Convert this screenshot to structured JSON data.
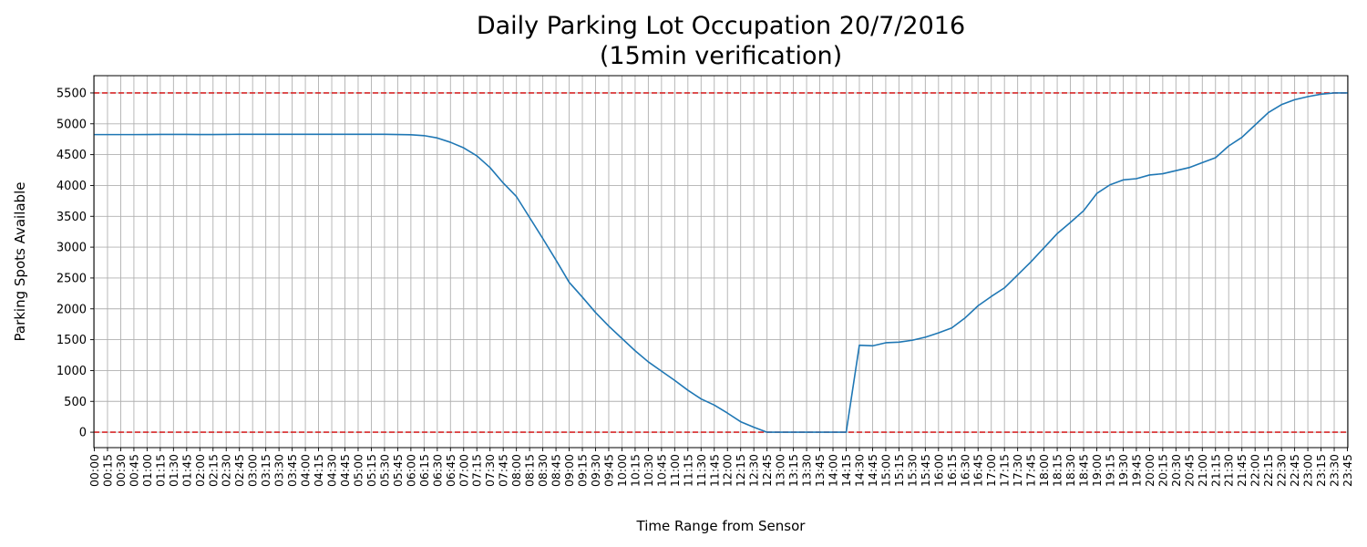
{
  "chart_data": {
    "type": "line",
    "title": "Daily Parking Lot Occupation 20/7/2016",
    "subtitle": "(15min verification)",
    "xlabel": "Time Range from Sensor",
    "ylabel": "Parking Spots Available",
    "ylim": [
      -250,
      5780
    ],
    "yticks": [
      0,
      500,
      1000,
      1500,
      2000,
      2500,
      3000,
      3500,
      4000,
      4500,
      5000,
      5500
    ],
    "grid": true,
    "line_color": "#1f77b4",
    "reference_lines": [
      {
        "value": 5500,
        "color": "#d62728",
        "style": "dashed"
      },
      {
        "value": 0,
        "color": "#d62728",
        "style": "dashed"
      }
    ],
    "x": [
      "00:00",
      "00:15",
      "00:30",
      "00:45",
      "01:00",
      "01:15",
      "01:30",
      "01:45",
      "02:00",
      "02:15",
      "02:30",
      "02:45",
      "03:00",
      "03:15",
      "03:30",
      "03:45",
      "04:00",
      "04:15",
      "04:30",
      "04:45",
      "05:00",
      "05:15",
      "05:30",
      "05:45",
      "06:00",
      "06:15",
      "06:30",
      "06:45",
      "07:00",
      "07:15",
      "07:30",
      "07:45",
      "08:00",
      "08:15",
      "08:30",
      "08:45",
      "09:00",
      "09:15",
      "09:30",
      "09:45",
      "10:00",
      "10:15",
      "10:30",
      "10:45",
      "11:00",
      "11:15",
      "11:30",
      "11:45",
      "12:00",
      "12:15",
      "12:30",
      "12:45",
      "13:00",
      "13:15",
      "13:30",
      "13:45",
      "14:00",
      "14:15",
      "14:30",
      "14:45",
      "15:00",
      "15:15",
      "15:30",
      "15:45",
      "16:00",
      "16:15",
      "16:30",
      "16:45",
      "17:00",
      "17:15",
      "17:30",
      "17:45",
      "18:00",
      "18:15",
      "18:30",
      "18:45",
      "19:00",
      "19:15",
      "19:30",
      "19:45",
      "20:00",
      "20:15",
      "20:30",
      "20:45",
      "21:00",
      "21:15",
      "21:30",
      "21:45",
      "22:00",
      "22:15",
      "22:30",
      "22:45",
      "23:00",
      "23:15",
      "23:30",
      "23:45"
    ],
    "series": [
      {
        "values": [
          4825,
          4825,
          4825,
          4825,
          4826,
          4827,
          4827,
          4827,
          4826,
          4826,
          4828,
          4829,
          4829,
          4829,
          4829,
          4829,
          4829,
          4829,
          4829,
          4829,
          4829,
          4829,
          4829,
          4826,
          4822,
          4808,
          4770,
          4700,
          4610,
          4480,
          4290,
          4040,
          3820,
          3480,
          3140,
          2790,
          2430,
          2190,
          1940,
          1720,
          1520,
          1320,
          1140,
          990,
          840,
          680,
          540,
          440,
          310,
          170,
          80,
          0,
          0,
          0,
          0,
          0,
          0,
          0,
          1410,
          1400,
          1450,
          1460,
          1490,
          1540,
          1610,
          1690,
          1850,
          2050,
          2200,
          2340,
          2550,
          2760,
          2990,
          3220,
          3400,
          3590,
          3870,
          4010,
          4090,
          4110,
          4170,
          4190,
          4240,
          4290,
          4370,
          4450,
          4640,
          4780,
          4980,
          5180,
          5310,
          5390,
          5440,
          5480,
          5500,
          5500
        ]
      }
    ]
  }
}
